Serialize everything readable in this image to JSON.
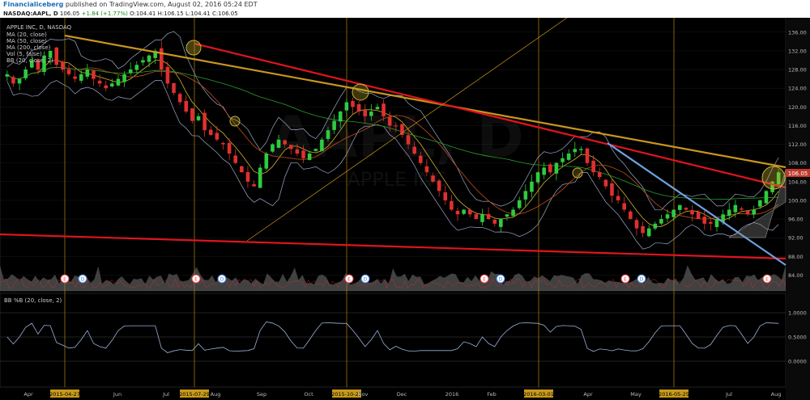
{
  "header": {
    "brand": "Financialiceberg",
    "published": "published on TradingView.com, August 02, 2016 05:24 EDT",
    "ticker": "NASDAQ:AAPL, D",
    "price": "106.05",
    "change": "+1.84 (+1.77%)",
    "open": "O:104.41",
    "high": "H:106.15",
    "low": "L:104.41",
    "close": "C:106.05"
  },
  "legend": {
    "title": "APPLE INC, D, NASDAQ",
    "items": [
      "MA (20, close)",
      "MA (50, close)",
      "MA (200, close)",
      "Vol (5, false)",
      "BB (20, close, 2)"
    ]
  },
  "watermark": {
    "symbol": "AAPL, D",
    "name": "APPLE INC"
  },
  "price_badge": "106.05",
  "chart_data": {
    "type": "candlestick",
    "price_axis": {
      "ticks": [
        "136.00",
        "132.00",
        "128.00",
        "124.00",
        "120.00",
        "116.00",
        "112.00",
        "108.00",
        "104.00",
        "100.00",
        "96.00",
        "92.00",
        "88.00",
        "84.00"
      ],
      "range": [
        82,
        137
      ]
    },
    "indicator": {
      "title": "BB %B (20, close, 2)",
      "ticks": [
        "1.0000",
        "0.5000",
        "0.0000"
      ]
    },
    "time_axis": {
      "labels": [
        "Apr",
        "2015-04-27",
        "Jun",
        "Jul",
        "2015-07-29",
        "Aug",
        "Sep",
        "Oct",
        "2015-10-23",
        "Nov",
        "Dec",
        "2016",
        "Feb",
        "2016-03-01",
        "Apr",
        "May",
        "2016-05-25",
        "Jul",
        "Aug"
      ],
      "highlighted": [
        "2015-04-27",
        "2015-07-29",
        "2015-10-23",
        "2016-03-01",
        "2016-05-25"
      ]
    },
    "events": [
      "E",
      "D",
      "E",
      "D",
      "E",
      "D",
      "E",
      "D",
      "E",
      "D",
      "E"
    ],
    "approx_closes": [
      127,
      125,
      126,
      128,
      130,
      128,
      131,
      132,
      129,
      128,
      127,
      126,
      127,
      128,
      126,
      125,
      124,
      125,
      126,
      127,
      128,
      129,
      130,
      131,
      132,
      128,
      125,
      123,
      121,
      119,
      117,
      118,
      115,
      114,
      113,
      112,
      110,
      108,
      106,
      104,
      103,
      107,
      110,
      112,
      113,
      112,
      111,
      110,
      109,
      110,
      111,
      113,
      115,
      117,
      119,
      121,
      120,
      119,
      118,
      119,
      120,
      118,
      116,
      116,
      114,
      112,
      110,
      108,
      106,
      104,
      102,
      100,
      98,
      97,
      98,
      97,
      96,
      97,
      96,
      95,
      96,
      97,
      98,
      100,
      102,
      104,
      106,
      107,
      106,
      108,
      109,
      110,
      111,
      111,
      108,
      106,
      105,
      103,
      101,
      100,
      98,
      96,
      94,
      93,
      94,
      95,
      96,
      97,
      98,
      99,
      98,
      97,
      96,
      95,
      95,
      96,
      97,
      98,
      99,
      98,
      97,
      98,
      100,
      102,
      104,
      106
    ]
  }
}
